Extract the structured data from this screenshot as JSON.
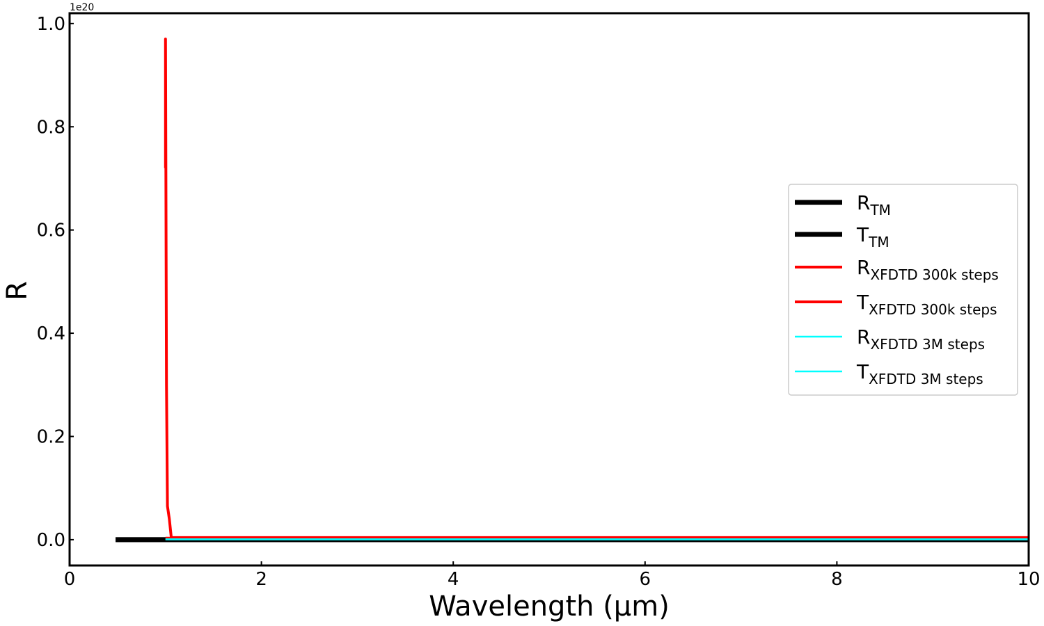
{
  "chart_data": {
    "type": "line",
    "title": "",
    "xlabel": "Wavelength (μm)",
    "ylabel": "R",
    "xlim": [
      0,
      10
    ],
    "ylim": [
      -0.05,
      1.02
    ],
    "y_offset_label": "1e20",
    "x_ticks": [
      "0",
      "2",
      "4",
      "6",
      "8",
      "10"
    ],
    "y_ticks": [
      "0.0",
      "0.2",
      "0.4",
      "0.6",
      "0.8",
      "1.0"
    ],
    "grid": false,
    "legend_position": "center-right",
    "series": [
      {
        "name_main": "R",
        "name_sub": "TM",
        "color": "#000000",
        "x": [
          0.48,
          1.0,
          10.0
        ],
        "y": [
          0,
          0,
          0
        ]
      },
      {
        "name_main": "T",
        "name_sub": "TM",
        "color": "#000000",
        "x": [
          0.48,
          1.0,
          10.0
        ],
        "y": [
          0,
          0,
          0
        ]
      },
      {
        "name_main": "R",
        "name_sub": "XFDTD 300k steps",
        "color": "#ff0000",
        "x": [
          1.0,
          1.0,
          1.01,
          1.02,
          1.04,
          1.06,
          1.5,
          10.0
        ],
        "y": [
          0.72,
          0.97,
          0.3,
          0.065,
          0.04,
          0.004,
          0.004,
          0.004
        ]
      },
      {
        "name_main": "T",
        "name_sub": "XFDTD 300k steps",
        "color": "#ff0000",
        "x": [
          1.0,
          1.04,
          10.0
        ],
        "y": [
          0.003,
          0.003,
          0.003
        ]
      },
      {
        "name_main": "R",
        "name_sub": "XFDTD 3M steps",
        "color": "#00ffff",
        "x": [
          1.0,
          10.0
        ],
        "y": [
          0.001,
          0.001
        ]
      },
      {
        "name_main": "T",
        "name_sub": "XFDTD 3M steps",
        "color": "#00ffff",
        "x": [
          1.0,
          10.0
        ],
        "y": [
          0.0005,
          0.0005
        ]
      }
    ]
  }
}
